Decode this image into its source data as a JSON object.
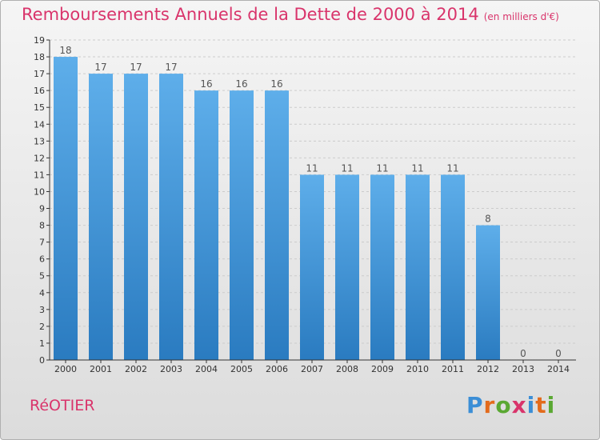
{
  "title": "Remboursements Annuels de la Dette de 2000 à 2014",
  "title_unit": "(en milliers d'€)",
  "commune": "RéOTIER",
  "brand": {
    "letters": [
      "P",
      "r",
      "o",
      "x",
      "i",
      "t",
      "i"
    ],
    "colors": [
      "#3b8ed6",
      "#e36b1c",
      "#5aa832",
      "#d9346b",
      "#3b8ed6",
      "#e36b1c",
      "#5aa832"
    ]
  },
  "colors": {
    "bar_light": "#5eaeea",
    "bar_dark": "#2a7bc0",
    "grid": "#cccccc",
    "axis": "#333333",
    "label": "#555555",
    "accent": "#d9346b"
  },
  "chart_data": {
    "type": "bar",
    "title": "Remboursements Annuels de la Dette de 2000 à 2014",
    "xlabel": "",
    "ylabel": "",
    "categories": [
      "2000",
      "2001",
      "2002",
      "2003",
      "2004",
      "2005",
      "2006",
      "2007",
      "2008",
      "2009",
      "2010",
      "2011",
      "2012",
      "2013",
      "2014"
    ],
    "values": [
      18,
      17,
      17,
      17,
      16,
      16,
      16,
      11,
      11,
      11,
      11,
      11,
      8,
      0,
      0
    ],
    "ylim": [
      0,
      19
    ],
    "yticks": [
      0,
      1,
      2,
      3,
      4,
      5,
      6,
      7,
      8,
      9,
      10,
      11,
      12,
      13,
      14,
      15,
      16,
      17,
      18,
      19
    ],
    "grid": true,
    "legend": "none"
  }
}
